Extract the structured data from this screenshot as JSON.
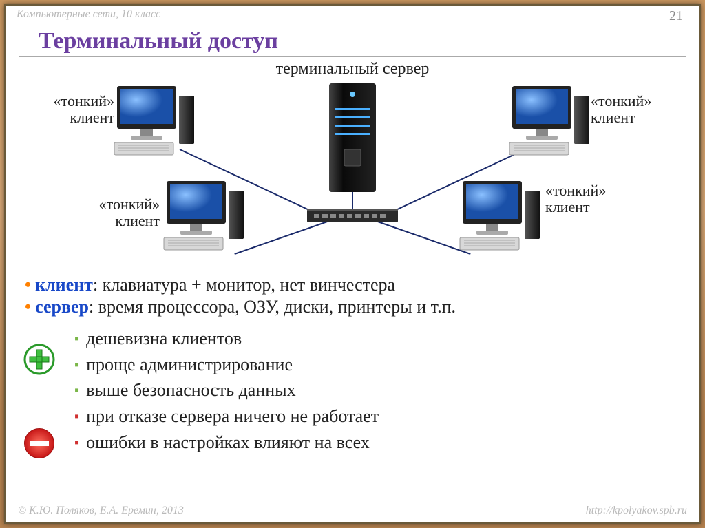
{
  "breadcrumb": "Компьютерные сети, 10 класс",
  "page_number": "21",
  "title": "Терминальный доступ",
  "diagram": {
    "server_label": "терминальный сервер",
    "client_label_line1": "«тонкий»",
    "client_label_line2": "клиент",
    "line_color": "#1a2a6a",
    "line_width": 2
  },
  "definitions": [
    {
      "term": "клиент",
      "text": ": клавиатура + монитор, нет винчестера"
    },
    {
      "term": "сервер",
      "text": ": время процессора, ОЗУ, диски, принтеры и т.п."
    }
  ],
  "pros": [
    "дешевизна клиентов",
    "проще администрирование",
    "выше безопасность данных"
  ],
  "cons": [
    "при отказе сервера ничего не работает",
    "ошибки в настройках влияют на всех"
  ],
  "colors": {
    "title": "#6b3fa0",
    "term": "#1848c8",
    "bullet_orange": "#ff8000",
    "bullet_green": "#7ab648",
    "bullet_red": "#d03030",
    "plus_green": "#3fbf3f",
    "minus_red": "#e03030",
    "monitor_screen": "#3378d8",
    "monitor_frame": "#222222",
    "server_body": "#1a1a1a",
    "server_led": "#4ab0ff",
    "switch_body": "#2a2a2a"
  },
  "footer": {
    "left": "© К.Ю. Поляков, Е.А. Еремин, 2013",
    "right": "http://kpolyakov.spb.ru"
  }
}
